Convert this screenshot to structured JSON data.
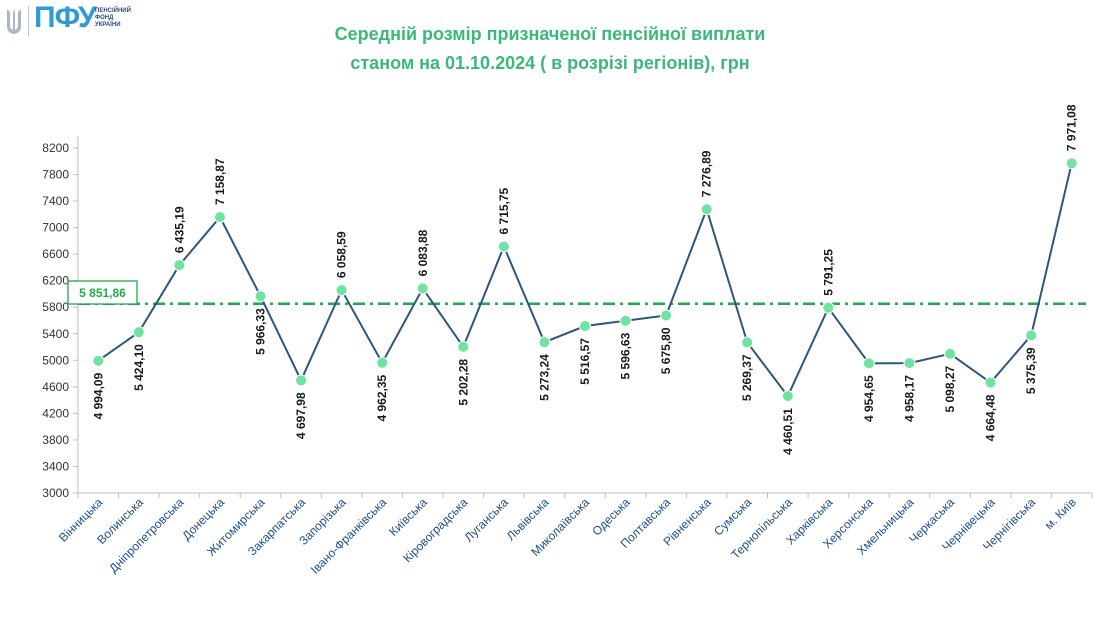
{
  "logo": {
    "icon": "trident-icon",
    "abbr": "ПФУ",
    "sub": [
      "ПЕНСІЙНИЙ",
      "ФОНД",
      "УКРАЇНИ"
    ]
  },
  "chart_data": {
    "type": "line",
    "title": [
      "Середній розмір призначеної пенсійної виплати",
      "станом на 01.10.2024 ( в розрізі регіонів), грн"
    ],
    "categories": [
      "Вінницька",
      "Волинська",
      "Дніпропетровська",
      "Донецька",
      "Житомирська",
      "Закарпатська",
      "Запорізька",
      "Івано-Франківська",
      "Київська",
      "Кіровоградська",
      "Луганська",
      "Львівська",
      "Миколаївська",
      "Одеська",
      "Полтавська",
      "Рівненська",
      "Сумська",
      "Тернопільська",
      "Харківська",
      "Херсонська",
      "Хмельницька",
      "Черкаська",
      "Чернівецька",
      "Чернігівська",
      "м. Київ"
    ],
    "values": [
      4994.09,
      5424.1,
      6435.19,
      7158.87,
      5966.33,
      4697.98,
      6058.59,
      4962.35,
      6083.88,
      5202.28,
      6715.75,
      5273.24,
      5516.57,
      5596.63,
      5675.8,
      7276.89,
      5269.37,
      4460.51,
      5791.25,
      4954.65,
      4958.17,
      5098.27,
      4664.48,
      5375.39,
      7971.08
    ],
    "value_labels": [
      "4 994,09",
      "5 424,10",
      "6 435,19",
      "7 158,87",
      "5 966,33",
      "4 697,98",
      "6 058,59",
      "4 962,35",
      "6 083,88",
      "5 202,28",
      "6 715,75",
      "5 273,24",
      "5 516,57",
      "5 596,63",
      "5 675,80",
      "7 276,89",
      "5 269,37",
      "4 460,51",
      "5 791,25",
      "4 954,65",
      "4 958,17",
      "5 098,27",
      "4 664,48",
      "5 375,39",
      "7 971,08"
    ],
    "label_above": [
      false,
      false,
      true,
      true,
      false,
      false,
      true,
      false,
      true,
      false,
      true,
      false,
      false,
      false,
      false,
      true,
      false,
      false,
      true,
      false,
      false,
      false,
      false,
      false,
      true
    ],
    "average": {
      "value": 5851.86,
      "label": "5 851,86"
    },
    "ylim": [
      3000,
      8200
    ],
    "yticks": [
      3000,
      3400,
      3800,
      4200,
      4600,
      5000,
      5400,
      5800,
      6200,
      6600,
      7000,
      7400,
      7800,
      8200
    ],
    "grid": false,
    "colors": {
      "line": "#2d5680",
      "marker": "#6ee3a2",
      "average": "#1faa4b",
      "title": "#3cb878",
      "xlabels": "#1f4e8c"
    }
  }
}
